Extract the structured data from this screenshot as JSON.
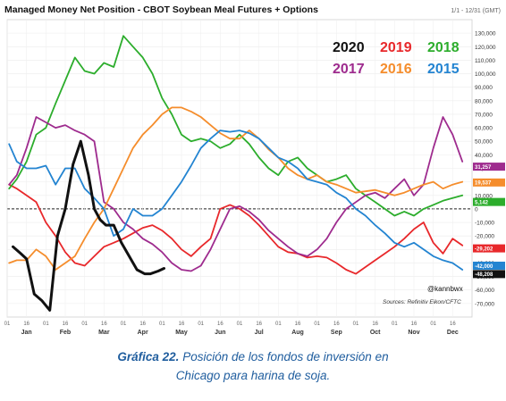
{
  "chart_data": {
    "type": "line",
    "title": "Managed Money Net Position - CBOT Soybean Meal Futures + Options",
    "range_label": "1/1 - 12/31 (GMT)",
    "x_months": [
      "Jan",
      "Feb",
      "Mar",
      "Apr",
      "May",
      "Jun",
      "Jul",
      "Aug",
      "Sep",
      "Oct",
      "Nov",
      "Dec"
    ],
    "x_day_labels": [
      "01",
      "16"
    ],
    "ylim": [
      -80000,
      140000
    ],
    "y_ticks": [
      130000,
      120000,
      110000,
      100000,
      90000,
      80000,
      70000,
      60000,
      50000,
      40000,
      30000,
      20000,
      10000,
      0,
      -10000,
      -20000,
      -30000,
      -40000,
      -50000,
      -60000,
      -70000
    ],
    "y_tick_labels": [
      "130,000",
      "120,000",
      "110,000",
      "100,000",
      "90,000",
      "80,000",
      "70,000",
      "60,000",
      "50,000",
      "40,000",
      "30,000",
      "20,000",
      "10,000",
      "0",
      "-10,000",
      "-20,000",
      "-30,000",
      "-40,000",
      "-50,000",
      "-60,000",
      "-70,000"
    ],
    "zero_line": "dashed",
    "credit": "@kannbwx",
    "source": "Sources: Refinitiv Eikon/CFTC",
    "series": [
      {
        "name": "2020",
        "color": "#111111",
        "width": 3,
        "x": [
          0.3,
          0.7,
          1.0,
          1.4,
          1.8,
          2.2,
          2.6,
          3.0,
          3.4,
          3.8,
          4.2,
          4.5,
          4.8,
          5.1,
          5.5,
          5.9,
          6.3,
          6.7,
          7.1,
          7.4,
          7.8,
          8.1
        ],
        "values": [
          -28000,
          -33000,
          -37000,
          -63000,
          -68000,
          -75000,
          -20000,
          0,
          33000,
          50000,
          25000,
          0,
          -8000,
          -12000,
          -12000,
          -25000,
          -35000,
          -45000,
          -48000,
          -48000,
          -46000,
          -44000
        ]
      },
      {
        "name": "2019",
        "color": "#e8282b",
        "width": 1.8,
        "x": [
          0.1,
          0.5,
          1.0,
          1.5,
          2.0,
          2.5,
          3.0,
          3.5,
          4.0,
          4.5,
          5.0,
          5.5,
          6.0,
          6.5,
          7.0,
          7.5,
          8.0,
          8.5,
          9.0,
          9.5,
          10.0,
          10.5,
          11.0,
          11.5,
          12.0,
          12.5,
          13.0,
          13.5,
          14.0,
          14.5,
          15.0,
          15.5,
          16.0,
          16.5,
          17.0,
          17.5,
          18.0,
          18.5,
          19.0,
          19.5,
          20.0,
          20.5,
          21.0,
          21.5,
          22.0,
          22.5,
          23.0,
          23.5
        ],
        "values": [
          18000,
          15000,
          10000,
          5000,
          -10000,
          -20000,
          -32000,
          -40000,
          -42000,
          -35000,
          -28000,
          -25000,
          -22000,
          -18000,
          -14000,
          -12000,
          -16000,
          -22000,
          -30000,
          -35000,
          -28000,
          -22000,
          0,
          3000,
          0,
          -5000,
          -12000,
          -20000,
          -28000,
          -32000,
          -33000,
          -36000,
          -35000,
          -36000,
          -40000,
          -45000,
          -48000,
          -43000,
          -38000,
          -33000,
          -28000,
          -22000,
          -15000,
          -10000,
          -25000,
          -33000,
          -22000,
          -27000
        ]
      },
      {
        "name": "2018",
        "color": "#2cad2c",
        "width": 1.8,
        "x": [
          0.1,
          0.5,
          1.0,
          1.5,
          2.0,
          2.5,
          3.0,
          3.5,
          4.0,
          4.5,
          5.0,
          5.5,
          6.0,
          6.5,
          7.0,
          7.5,
          8.0,
          8.5,
          9.0,
          9.5,
          10.0,
          10.5,
          11.0,
          11.5,
          12.0,
          12.5,
          13.0,
          13.5,
          14.0,
          14.5,
          15.0,
          15.5,
          16.0,
          16.5,
          17.0,
          17.5,
          18.0,
          18.5,
          19.0,
          19.5,
          20.0,
          20.5,
          21.0,
          21.5,
          22.0,
          22.5,
          23.0,
          23.5
        ],
        "values": [
          15000,
          22000,
          35000,
          55000,
          60000,
          78000,
          95000,
          112000,
          102000,
          100000,
          108000,
          105000,
          128000,
          120000,
          112000,
          100000,
          82000,
          70000,
          55000,
          50000,
          52000,
          50000,
          45000,
          48000,
          55000,
          48000,
          38000,
          30000,
          25000,
          35000,
          38000,
          30000,
          25000,
          20000,
          22000,
          25000,
          15000,
          10000,
          5000,
          0,
          -5000,
          -2000,
          -5000,
          0,
          3000,
          6000,
          8000,
          10000
        ]
      },
      {
        "name": "2017",
        "color": "#9e2b8e",
        "width": 1.8,
        "x": [
          0.1,
          0.5,
          1.0,
          1.5,
          2.0,
          2.5,
          3.0,
          3.5,
          4.0,
          4.5,
          5.0,
          5.5,
          6.0,
          6.5,
          7.0,
          7.5,
          8.0,
          8.5,
          9.0,
          9.5,
          10.0,
          10.5,
          11.0,
          11.5,
          12.0,
          12.5,
          13.0,
          13.5,
          14.0,
          14.5,
          15.0,
          15.5,
          16.0,
          16.5,
          17.0,
          17.5,
          18.0,
          18.5,
          19.0,
          19.5,
          20.0,
          20.5,
          21.0,
          21.5,
          22.0,
          22.5,
          23.0,
          23.5
        ],
        "values": [
          18000,
          25000,
          45000,
          68000,
          64000,
          60000,
          62000,
          58000,
          55000,
          50000,
          5000,
          0,
          -10000,
          -15000,
          -22000,
          -26000,
          -32000,
          -40000,
          -45000,
          -46000,
          -42000,
          -30000,
          -15000,
          0,
          2000,
          -2000,
          -8000,
          -16000,
          -22000,
          -28000,
          -33000,
          -35000,
          -30000,
          -22000,
          -10000,
          0,
          5000,
          10000,
          12000,
          8000,
          15000,
          22000,
          10000,
          18000,
          45000,
          68000,
          55000,
          35000
        ]
      },
      {
        "name": "2016",
        "color": "#f58d2c",
        "width": 1.8,
        "x": [
          0.1,
          0.5,
          1.0,
          1.5,
          2.0,
          2.5,
          3.0,
          3.5,
          4.0,
          4.5,
          5.0,
          5.5,
          6.0,
          6.5,
          7.0,
          7.5,
          8.0,
          8.5,
          9.0,
          9.5,
          10.0,
          10.5,
          11.0,
          11.5,
          12.0,
          12.5,
          13.0,
          13.5,
          14.0,
          14.5,
          15.0,
          15.5,
          16.0,
          16.5,
          17.0,
          17.5,
          18.0,
          18.5,
          19.0,
          19.5,
          20.0,
          20.5,
          21.0,
          21.5,
          22.0,
          22.5,
          23.0,
          23.5
        ],
        "values": [
          -40000,
          -38000,
          -38000,
          -30000,
          -35000,
          -45000,
          -40000,
          -35000,
          -22000,
          -10000,
          0,
          15000,
          30000,
          45000,
          55000,
          62000,
          70000,
          75000,
          75000,
          72000,
          68000,
          62000,
          56000,
          52000,
          52000,
          58000,
          52000,
          44000,
          38000,
          30000,
          25000,
          22000,
          25000,
          20000,
          18000,
          15000,
          12000,
          13000,
          14000,
          12000,
          10000,
          12000,
          15000,
          18000,
          20000,
          15000,
          18000,
          20000
        ]
      },
      {
        "name": "2015",
        "color": "#2384d1",
        "width": 1.8,
        "x": [
          0.1,
          0.5,
          1.0,
          1.5,
          2.0,
          2.5,
          3.0,
          3.5,
          4.0,
          4.5,
          5.0,
          5.5,
          6.0,
          6.5,
          7.0,
          7.5,
          8.0,
          8.5,
          9.0,
          9.5,
          10.0,
          10.5,
          11.0,
          11.5,
          12.0,
          12.5,
          13.0,
          13.5,
          14.0,
          14.5,
          15.0,
          15.5,
          16.0,
          16.5,
          17.0,
          17.5,
          18.0,
          18.5,
          19.0,
          19.5,
          20.0,
          20.5,
          21.0,
          21.5,
          22.0,
          22.5,
          23.0,
          23.5
        ],
        "values": [
          48000,
          35000,
          30000,
          30000,
          32000,
          18000,
          30000,
          30000,
          15000,
          8000,
          0,
          -20000,
          -15000,
          0,
          -5000,
          -5000,
          0,
          10000,
          20000,
          32000,
          45000,
          52000,
          58000,
          57000,
          58000,
          56000,
          52000,
          45000,
          38000,
          35000,
          30000,
          22000,
          20000,
          18000,
          12000,
          8000,
          0,
          -5000,
          -12000,
          -18000,
          -25000,
          -28000,
          -25000,
          -30000,
          -35000,
          -38000,
          -40000,
          -45000
        ]
      }
    ],
    "end_tags": [
      {
        "label": "31,257",
        "color": "#9e2b8e",
        "value": 31257
      },
      {
        "label": "19,537",
        "color": "#f58d2c",
        "value": 19537
      },
      {
        "label": "5,142",
        "color": "#2cad2c",
        "value": 5142
      },
      {
        "label": "-29,202",
        "color": "#e8282b",
        "value": -29202
      },
      {
        "label": "-42,000",
        "color": "#2384d1",
        "value": -42000
      },
      {
        "label": "-48,208",
        "color": "#111111",
        "value": -48208
      }
    ]
  },
  "caption": {
    "label": "Gráfica 22.",
    "text_line1": " Posición de los fondos de inversión en",
    "text_line2": "Chicago para harina de soja."
  }
}
